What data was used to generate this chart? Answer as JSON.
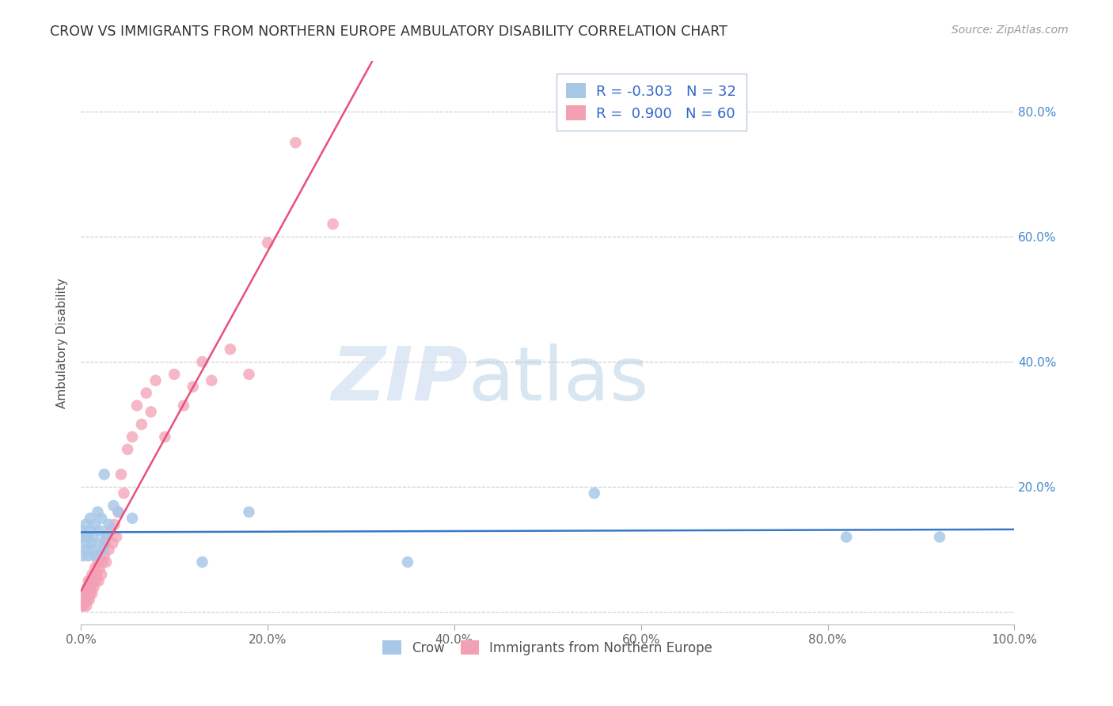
{
  "title": "CROW VS IMMIGRANTS FROM NORTHERN EUROPE AMBULATORY DISABILITY CORRELATION CHART",
  "source": "Source: ZipAtlas.com",
  "ylabel": "Ambulatory Disability",
  "xlim": [
    0.0,
    1.0
  ],
  "ylim": [
    -0.02,
    0.88
  ],
  "xticks": [
    0.0,
    0.2,
    0.4,
    0.6,
    0.8,
    1.0
  ],
  "yticks": [
    0.0,
    0.2,
    0.4,
    0.6,
    0.8
  ],
  "xticklabels": [
    "0.0%",
    "20.0%",
    "40.0%",
    "60.0%",
    "80.0%",
    "100.0%"
  ],
  "yticklabels_right": [
    "",
    "20.0%",
    "40.0%",
    "60.0%",
    "80.0%"
  ],
  "crow_R": -0.303,
  "crow_N": 32,
  "imm_R": 0.9,
  "imm_N": 60,
  "crow_color": "#a8c8e8",
  "imm_color": "#f4a0b4",
  "crow_line_color": "#3878c8",
  "imm_line_color": "#e8507a",
  "watermark_zip": "ZIP",
  "watermark_atlas": "atlas",
  "background_color": "#ffffff",
  "grid_color": "#cccccc",
  "crow_x": [
    0.001,
    0.002,
    0.003,
    0.004,
    0.005,
    0.006,
    0.007,
    0.008,
    0.009,
    0.01,
    0.011,
    0.012,
    0.013,
    0.015,
    0.016,
    0.018,
    0.02,
    0.021,
    0.022,
    0.024,
    0.025,
    0.027,
    0.03,
    0.035,
    0.04,
    0.055,
    0.13,
    0.18,
    0.35,
    0.55,
    0.82,
    0.92
  ],
  "crow_y": [
    0.13,
    0.09,
    0.12,
    0.11,
    0.14,
    0.1,
    0.12,
    0.09,
    0.13,
    0.15,
    0.11,
    0.1,
    0.12,
    0.14,
    0.09,
    0.16,
    0.13,
    0.11,
    0.15,
    0.1,
    0.22,
    0.12,
    0.14,
    0.17,
    0.16,
    0.15,
    0.08,
    0.16,
    0.08,
    0.19,
    0.12,
    0.12
  ],
  "imm_x": [
    0.001,
    0.002,
    0.003,
    0.004,
    0.005,
    0.006,
    0.006,
    0.007,
    0.007,
    0.008,
    0.008,
    0.009,
    0.009,
    0.01,
    0.01,
    0.011,
    0.012,
    0.012,
    0.013,
    0.014,
    0.015,
    0.016,
    0.017,
    0.018,
    0.019,
    0.02,
    0.021,
    0.022,
    0.023,
    0.024,
    0.025,
    0.026,
    0.027,
    0.028,
    0.03,
    0.032,
    0.034,
    0.036,
    0.038,
    0.04,
    0.043,
    0.046,
    0.05,
    0.055,
    0.06,
    0.065,
    0.07,
    0.075,
    0.08,
    0.09,
    0.1,
    0.11,
    0.12,
    0.13,
    0.14,
    0.16,
    0.18,
    0.2,
    0.23,
    0.27
  ],
  "imm_y": [
    0.01,
    0.02,
    0.01,
    0.03,
    0.02,
    0.01,
    0.03,
    0.02,
    0.04,
    0.03,
    0.05,
    0.02,
    0.04,
    0.03,
    0.05,
    0.04,
    0.06,
    0.03,
    0.05,
    0.04,
    0.07,
    0.05,
    0.06,
    0.08,
    0.05,
    0.07,
    0.09,
    0.06,
    0.08,
    0.1,
    0.09,
    0.11,
    0.08,
    0.12,
    0.1,
    0.13,
    0.11,
    0.14,
    0.12,
    0.16,
    0.22,
    0.19,
    0.26,
    0.28,
    0.33,
    0.3,
    0.35,
    0.32,
    0.37,
    0.28,
    0.38,
    0.33,
    0.36,
    0.4,
    0.37,
    0.42,
    0.38,
    0.59,
    0.75,
    0.62
  ]
}
